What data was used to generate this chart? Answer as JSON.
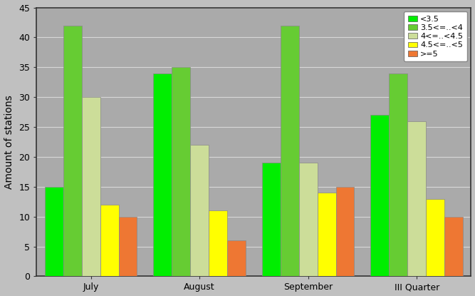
{
  "categories": [
    "July",
    "August",
    "September",
    "III Quarter"
  ],
  "series": [
    {
      "label": "<3.5",
      "values": [
        15,
        34,
        19,
        27
      ],
      "color": "#00EE00"
    },
    {
      "label": "3.5<=..<4",
      "values": [
        42,
        35,
        42,
        34
      ],
      "color": "#66CC33"
    },
    {
      "label": "4<=..<4.5",
      "values": [
        30,
        22,
        19,
        26
      ],
      "color": "#CCDD99"
    },
    {
      "label": "4.5<=..<5",
      "values": [
        12,
        11,
        14,
        13
      ],
      "color": "#FFFF00"
    },
    {
      "label": ">=5",
      "values": [
        10,
        6,
        15,
        10
      ],
      "color": "#EE7733"
    }
  ],
  "ylabel": "Amount of stations",
  "ylim": [
    0,
    45
  ],
  "yticks": [
    0,
    5,
    10,
    15,
    20,
    25,
    30,
    35,
    40,
    45
  ],
  "background_color": "#C0C0C0",
  "plot_bg_color": "#AAAAAA",
  "grid_color": "#D8D8D8",
  "bar_width": 0.17,
  "legend_fontsize": 8,
  "axis_fontsize": 10,
  "tick_fontsize": 9
}
